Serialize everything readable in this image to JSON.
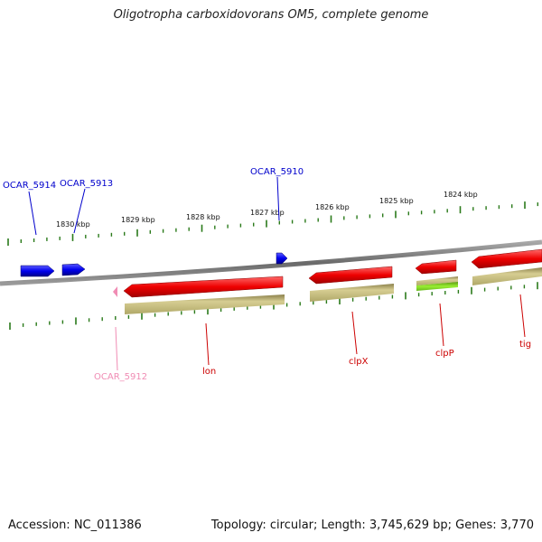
{
  "title": "Oligotropha carboxidovorans OM5, complete genome",
  "footer": {
    "accession": "Accession: NC_011386",
    "summary": "Topology: circular; Length: 3,745,629 bp; Genes: 3,770"
  },
  "scale_labels": [
    "1830 kbp",
    "1829 kbp",
    "1828 kbp",
    "1827 kbp",
    "1826 kbp",
    "1825 kbp",
    "1824 kbp"
  ],
  "gene_labels": [
    "OCAR_5914",
    "OCAR_5913",
    "OCAR_5910",
    "OCAR_5912",
    "lon",
    "clpX",
    "clpP",
    "tig"
  ],
  "colors": {
    "forward_gene": "#0000ee",
    "reverse_gene": "#ee0000",
    "pseudo_gene": "#f08cb4",
    "cds_feature": "#c8bf85",
    "cds_green": "#88dd22",
    "tick": "#2a7a1a",
    "backbone": "#808080"
  }
}
